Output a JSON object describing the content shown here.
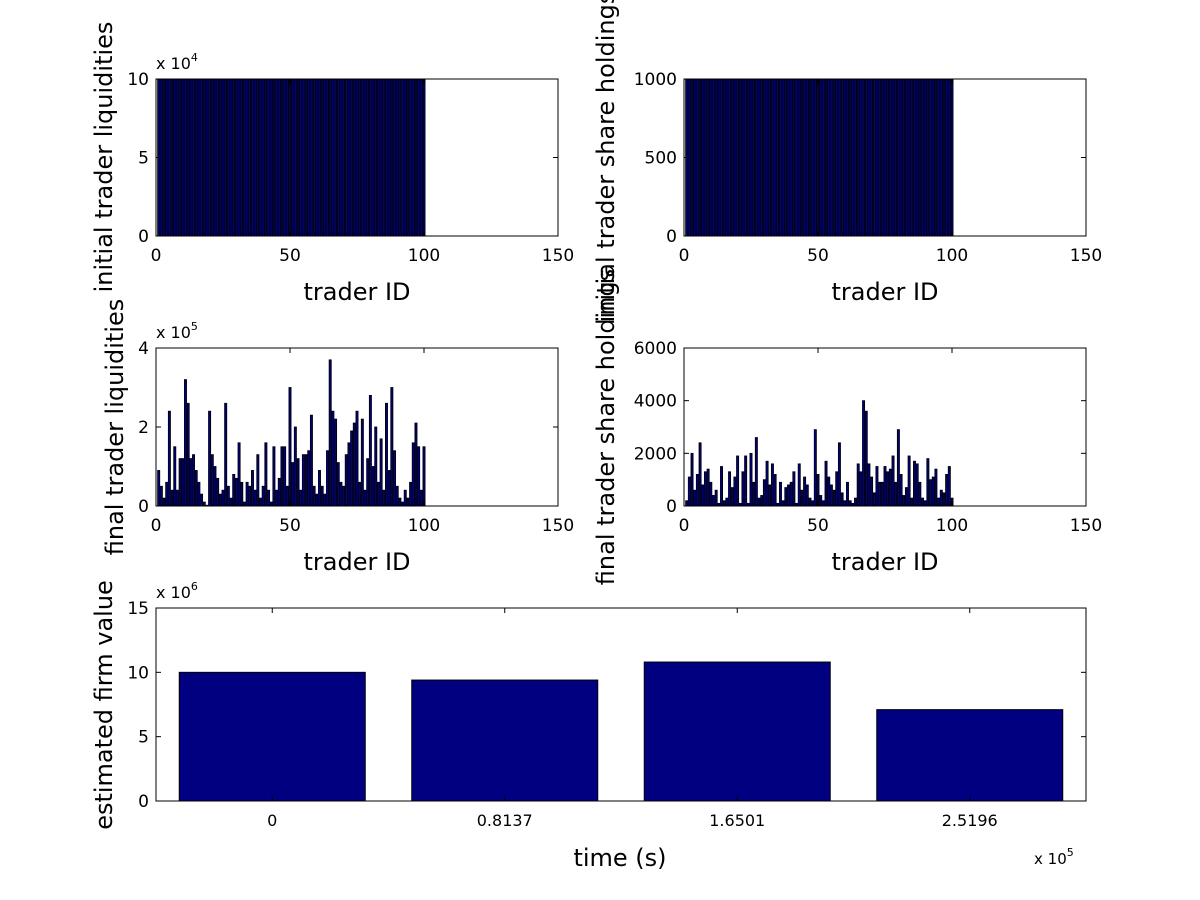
{
  "colors": {
    "bar_fill": "#000080",
    "bar_edge": "#000000",
    "axis": "#000000",
    "background": "#ffffff"
  },
  "chart_data": [
    {
      "type": "bar",
      "id": "init-liq",
      "xlabel": "trader ID",
      "ylabel": "initial trader liquidities",
      "exponent": "x 10",
      "exponent_power": "4",
      "xlim": [
        0,
        150
      ],
      "ylim": [
        0,
        10
      ],
      "xticks": [
        0,
        50,
        100,
        150
      ],
      "yticks": [
        0,
        5,
        10
      ],
      "x": [
        1,
        2,
        3,
        4,
        5,
        6,
        7,
        8,
        9,
        10,
        11,
        12,
        13,
        14,
        15,
        16,
        17,
        18,
        19,
        20,
        21,
        22,
        23,
        24,
        25,
        26,
        27,
        28,
        29,
        30,
        31,
        32,
        33,
        34,
        35,
        36,
        37,
        38,
        39,
        40,
        41,
        42,
        43,
        44,
        45,
        46,
        47,
        48,
        49,
        50,
        51,
        52,
        53,
        54,
        55,
        56,
        57,
        58,
        59,
        60,
        61,
        62,
        63,
        64,
        65,
        66,
        67,
        68,
        69,
        70,
        71,
        72,
        73,
        74,
        75,
        76,
        77,
        78,
        79,
        80,
        81,
        82,
        83,
        84,
        85,
        86,
        87,
        88,
        89,
        90,
        91,
        92,
        93,
        94,
        95,
        96,
        97,
        98,
        99,
        100
      ],
      "values": [
        10,
        10,
        10,
        10,
        10,
        10,
        10,
        10,
        10,
        10,
        10,
        10,
        10,
        10,
        10,
        10,
        10,
        10,
        10,
        10,
        10,
        10,
        10,
        10,
        10,
        10,
        10,
        10,
        10,
        10,
        10,
        10,
        10,
        10,
        10,
        10,
        10,
        10,
        10,
        10,
        10,
        10,
        10,
        10,
        10,
        10,
        10,
        10,
        10,
        10,
        10,
        10,
        10,
        10,
        10,
        10,
        10,
        10,
        10,
        10,
        10,
        10,
        10,
        10,
        10,
        10,
        10,
        10,
        10,
        10,
        10,
        10,
        10,
        10,
        10,
        10,
        10,
        10,
        10,
        10,
        10,
        10,
        10,
        10,
        10,
        10,
        10,
        10,
        10,
        10,
        10,
        10,
        10,
        10,
        10,
        10,
        10,
        10,
        10,
        10
      ]
    },
    {
      "type": "bar",
      "id": "init-share",
      "xlabel": "trader ID",
      "ylabel": "initial trader share holdings",
      "exponent": "",
      "exponent_power": "",
      "xlim": [
        0,
        150
      ],
      "ylim": [
        0,
        1000
      ],
      "xticks": [
        0,
        50,
        100,
        150
      ],
      "yticks": [
        0,
        500,
        1000
      ],
      "x": [
        1,
        2,
        3,
        4,
        5,
        6,
        7,
        8,
        9,
        10,
        11,
        12,
        13,
        14,
        15,
        16,
        17,
        18,
        19,
        20,
        21,
        22,
        23,
        24,
        25,
        26,
        27,
        28,
        29,
        30,
        31,
        32,
        33,
        34,
        35,
        36,
        37,
        38,
        39,
        40,
        41,
        42,
        43,
        44,
        45,
        46,
        47,
        48,
        49,
        50,
        51,
        52,
        53,
        54,
        55,
        56,
        57,
        58,
        59,
        60,
        61,
        62,
        63,
        64,
        65,
        66,
        67,
        68,
        69,
        70,
        71,
        72,
        73,
        74,
        75,
        76,
        77,
        78,
        79,
        80,
        81,
        82,
        83,
        84,
        85,
        86,
        87,
        88,
        89,
        90,
        91,
        92,
        93,
        94,
        95,
        96,
        97,
        98,
        99,
        100
      ],
      "values": [
        1000,
        1000,
        1000,
        1000,
        1000,
        1000,
        1000,
        1000,
        1000,
        1000,
        1000,
        1000,
        1000,
        1000,
        1000,
        1000,
        1000,
        1000,
        1000,
        1000,
        1000,
        1000,
        1000,
        1000,
        1000,
        1000,
        1000,
        1000,
        1000,
        1000,
        1000,
        1000,
        1000,
        1000,
        1000,
        1000,
        1000,
        1000,
        1000,
        1000,
        1000,
        1000,
        1000,
        1000,
        1000,
        1000,
        1000,
        1000,
        1000,
        1000,
        1000,
        1000,
        1000,
        1000,
        1000,
        1000,
        1000,
        1000,
        1000,
        1000,
        1000,
        1000,
        1000,
        1000,
        1000,
        1000,
        1000,
        1000,
        1000,
        1000,
        1000,
        1000,
        1000,
        1000,
        1000,
        1000,
        1000,
        1000,
        1000,
        1000,
        1000,
        1000,
        1000,
        1000,
        1000,
        1000,
        1000,
        1000,
        1000,
        1000,
        1000,
        1000,
        1000,
        1000,
        1000,
        1000,
        1000,
        1000,
        1000,
        1000
      ]
    },
    {
      "type": "bar",
      "id": "final-liq",
      "xlabel": "trader ID",
      "ylabel": "final trader liquidities",
      "exponent": "x 10",
      "exponent_power": "5",
      "xlim": [
        0,
        150
      ],
      "ylim": [
        0,
        4
      ],
      "xticks": [
        0,
        50,
        100,
        150
      ],
      "yticks": [
        0,
        2,
        4
      ],
      "x": [
        1,
        2,
        3,
        4,
        5,
        6,
        7,
        8,
        9,
        10,
        11,
        12,
        13,
        14,
        15,
        16,
        17,
        18,
        19,
        20,
        21,
        22,
        23,
        24,
        25,
        26,
        27,
        28,
        29,
        30,
        31,
        32,
        33,
        34,
        35,
        36,
        37,
        38,
        39,
        40,
        41,
        42,
        43,
        44,
        45,
        46,
        47,
        48,
        49,
        50,
        51,
        52,
        53,
        54,
        55,
        56,
        57,
        58,
        59,
        60,
        61,
        62,
        63,
        64,
        65,
        66,
        67,
        68,
        69,
        70,
        71,
        72,
        73,
        74,
        75,
        76,
        77,
        78,
        79,
        80,
        81,
        82,
        83,
        84,
        85,
        86,
        87,
        88,
        89,
        90,
        91,
        92,
        93,
        94,
        95,
        96,
        97,
        98,
        99,
        100
      ],
      "values": [
        0.9,
        0.5,
        0.2,
        0.6,
        2.4,
        0.4,
        1.5,
        0.4,
        1.2,
        1.2,
        3.2,
        2.6,
        1.2,
        1.3,
        0.9,
        0.6,
        0.3,
        0.1,
        0.02,
        2.4,
        1.3,
        1.0,
        0.7,
        0.3,
        0.4,
        2.6,
        0.5,
        0.2,
        0.8,
        0.7,
        1.6,
        0.6,
        0.1,
        0.6,
        0.5,
        0.9,
        0.4,
        1.3,
        0.2,
        0.5,
        1.6,
        0.4,
        0.1,
        1.5,
        0.4,
        0.7,
        1.5,
        1.5,
        0.5,
        3.0,
        1.1,
        2.0,
        1.2,
        0.4,
        1.3,
        1.3,
        1.4,
        2.3,
        0.5,
        0.3,
        0.9,
        0.5,
        0.3,
        1.4,
        3.7,
        2.4,
        2.2,
        1.1,
        0.6,
        0.5,
        1.3,
        1.6,
        1.9,
        2.1,
        2.4,
        0.6,
        2.2,
        0.4,
        1.2,
        2.8,
        1.0,
        2.0,
        0.6,
        1.7,
        0.4,
        2.6,
        0.9,
        3.0,
        1.4,
        0.5,
        0.2,
        0.1,
        0.4,
        0.2,
        0.6,
        1.6,
        2.1,
        1.5,
        0.4,
        1.5
      ]
    },
    {
      "type": "bar",
      "id": "final-share",
      "xlabel": "trader ID",
      "ylabel": "final trader share holdings",
      "exponent": "",
      "exponent_power": "",
      "xlim": [
        0,
        150
      ],
      "ylim": [
        0,
        6000
      ],
      "xticks": [
        0,
        50,
        100,
        150
      ],
      "yticks": [
        0,
        2000,
        4000,
        6000
      ],
      "x": [
        1,
        2,
        3,
        4,
        5,
        6,
        7,
        8,
        9,
        10,
        11,
        12,
        13,
        14,
        15,
        16,
        17,
        18,
        19,
        20,
        21,
        22,
        23,
        24,
        25,
        26,
        27,
        28,
        29,
        30,
        31,
        32,
        33,
        34,
        35,
        36,
        37,
        38,
        39,
        40,
        41,
        42,
        43,
        44,
        45,
        46,
        47,
        48,
        49,
        50,
        51,
        52,
        53,
        54,
        55,
        56,
        57,
        58,
        59,
        60,
        61,
        62,
        63,
        64,
        65,
        66,
        67,
        68,
        69,
        70,
        71,
        72,
        73,
        74,
        75,
        76,
        77,
        78,
        79,
        80,
        81,
        82,
        83,
        84,
        85,
        86,
        87,
        88,
        89,
        90,
        91,
        92,
        93,
        94,
        95,
        96,
        97,
        98,
        99,
        100
      ],
      "values": [
        200,
        1100,
        2000,
        600,
        1200,
        2400,
        800,
        1300,
        1400,
        900,
        400,
        600,
        100,
        1500,
        200,
        300,
        1300,
        700,
        1100,
        1900,
        100,
        1300,
        1900,
        100,
        2000,
        900,
        2600,
        300,
        400,
        1000,
        1700,
        800,
        1600,
        1200,
        100,
        900,
        200,
        700,
        800,
        900,
        1300,
        100,
        1600,
        600,
        1100,
        800,
        300,
        200,
        2900,
        1200,
        400,
        200,
        1700,
        1100,
        800,
        600,
        1300,
        2400,
        500,
        200,
        900,
        200,
        100,
        300,
        1600,
        1300,
        4000,
        3600,
        1600,
        1100,
        500,
        1500,
        900,
        900,
        1500,
        1300,
        1400,
        1900,
        900,
        2900,
        1200,
        400,
        700,
        1900,
        300,
        1700,
        1600,
        900,
        300,
        200,
        1800,
        1000,
        1100,
        1400,
        300,
        600,
        500,
        1200,
        1500,
        300
      ]
    },
    {
      "type": "bar",
      "id": "firm-value",
      "xlabel": "time (s)",
      "ylabel": "estimated firm value",
      "exponent": "x 10",
      "exponent_power": "6",
      "x_exponent": "x 10",
      "x_exponent_power": "5",
      "categories": [
        "0",
        "0.8137",
        "1.6501",
        "2.5196"
      ],
      "values": [
        10.0,
        9.4,
        10.8,
        7.1
      ],
      "ylim": [
        0,
        15
      ],
      "yticks": [
        0,
        5,
        10,
        15
      ]
    }
  ]
}
